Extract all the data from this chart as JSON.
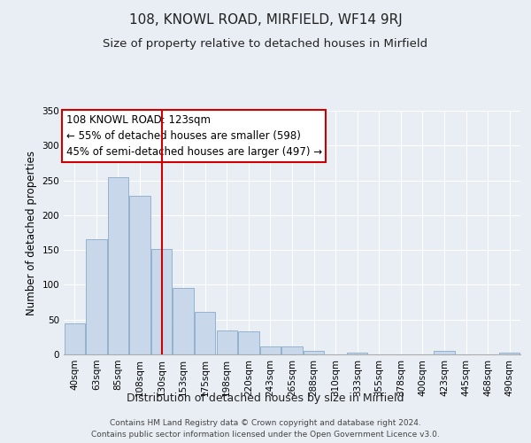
{
  "title": "108, KNOWL ROAD, MIRFIELD, WF14 9RJ",
  "subtitle": "Size of property relative to detached houses in Mirfield",
  "xlabel": "Distribution of detached houses by size in Mirfield",
  "ylabel": "Number of detached properties",
  "bar_labels": [
    "40sqm",
    "63sqm",
    "85sqm",
    "108sqm",
    "130sqm",
    "153sqm",
    "175sqm",
    "198sqm",
    "220sqm",
    "243sqm",
    "265sqm",
    "288sqm",
    "310sqm",
    "333sqm",
    "355sqm",
    "378sqm",
    "400sqm",
    "423sqm",
    "445sqm",
    "468sqm",
    "490sqm"
  ],
  "bar_values": [
    44,
    165,
    254,
    228,
    152,
    96,
    61,
    34,
    33,
    11,
    11,
    5,
    0,
    3,
    0,
    0,
    0,
    5,
    0,
    0,
    2
  ],
  "bar_color": "#c8d8ea",
  "bar_edge_color": "#88aac8",
  "reference_line_x": 4,
  "reference_line_color": "#cc0000",
  "annotation_text": "108 KNOWL ROAD: 123sqm\n← 55% of detached houses are smaller (598)\n45% of semi-detached houses are larger (497) →",
  "annotation_box_color": "#ffffff",
  "annotation_box_edge_color": "#cc0000",
  "ylim": [
    0,
    350
  ],
  "yticks": [
    0,
    50,
    100,
    150,
    200,
    250,
    300,
    350
  ],
  "background_color": "#e8eef4",
  "grid_color": "#ffffff",
  "footer_line1": "Contains HM Land Registry data © Crown copyright and database right 2024.",
  "footer_line2": "Contains public sector information licensed under the Open Government Licence v3.0.",
  "title_fontsize": 11,
  "subtitle_fontsize": 9.5,
  "xlabel_fontsize": 9,
  "ylabel_fontsize": 8.5,
  "tick_fontsize": 7.5,
  "annotation_fontsize": 8.5,
  "footer_fontsize": 6.5
}
